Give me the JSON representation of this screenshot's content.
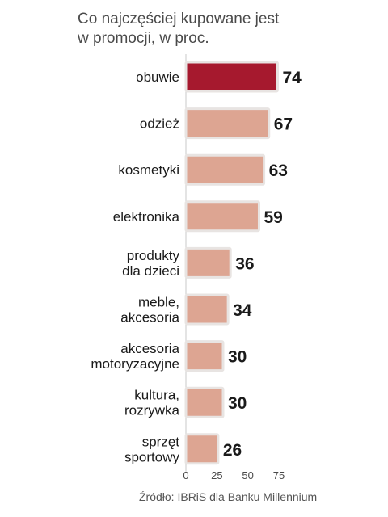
{
  "chart_data": {
    "type": "bar",
    "orientation": "horizontal",
    "title_lines": [
      "Co najczęściej kupowane jest",
      "w promocji, w proc."
    ],
    "categories": [
      "obuwie",
      "odzież",
      "kosmetyki",
      "elektronika",
      "produkty\ndla dzieci",
      "meble,\nakcesoria",
      "akcesoria\nmotoryzacyjne",
      "kultura,\nrozrywka",
      "sprzęt\nsportowy"
    ],
    "values": [
      74,
      67,
      63,
      59,
      36,
      34,
      30,
      30,
      26
    ],
    "highlight_index": 0,
    "xlim": [
      0,
      75
    ],
    "x_ticks": [
      0,
      25,
      50,
      75
    ],
    "grid": false,
    "colors": {
      "highlight": "#a6192e",
      "bar": "#dda592",
      "bar_outline": "#e8e4e2"
    },
    "source": "Źródło: IBRiS dla Banku Millennium"
  }
}
